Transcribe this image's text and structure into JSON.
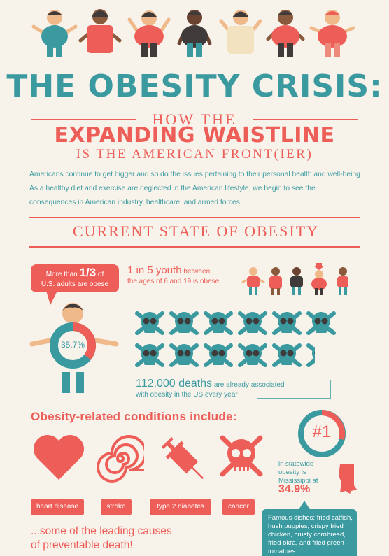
{
  "header": {
    "title": "THE OBESITY CRISIS:",
    "subtitle_line1": "HOW THE",
    "subtitle_line2": "EXPANDING WAISTLINE",
    "subtitle_line3": "IS THE AMERICAN FRONT(IER)"
  },
  "intro": "Americans continue to get bigger and so do the issues pertaining to their personal health and well-being. As a healthy diet and exercise are neglected in the American lifestyle, we begin to see the consequences in American industry, healthcare, and armed forces.",
  "current_state": {
    "heading": "CURRENT STATE OF OBESITY",
    "adults_pre": "More than ",
    "adults_fraction": "1/3",
    "adults_mid": " of",
    "adults_post": "U.S. adults are obese",
    "adults_percent": "35.7%",
    "adults_ring_fraction": 0.357,
    "youth_big": "1 in 5 youth",
    "youth_rest_1": " between",
    "youth_rest_2": "the ages of 6 and 19 is obese",
    "deaths_big": "112,000 deaths",
    "deaths_rest_1": " are already associated",
    "deaths_rest_2": "with obesity in the US every year"
  },
  "conditions": {
    "heading": "Obesity-related conditions include:",
    "items": [
      {
        "label": "heart disease",
        "icon": "heart-icon"
      },
      {
        "label": "stroke",
        "icon": "spiral-icon"
      },
      {
        "label": "type 2 diabetes",
        "icon": "syringe-icon"
      },
      {
        "label": "cancer",
        "icon": "skull-icon"
      }
    ],
    "leading_1": "...some of the leading causes",
    "leading_2": "of preventable death!"
  },
  "mississippi": {
    "rank": "#1",
    "text_1": "in statewide",
    "text_2": "obesity is",
    "text_3": "Mississippi at",
    "percent": "34.9%",
    "dishes": "Famous dishes: fried catfish, hush puppies, crispy fried chicken, crusty cornbread, fried okra, and fried green tomatoes"
  },
  "colors": {
    "teal": "#3a9aa0",
    "coral": "#ee5e58",
    "dark": "#3f3b3a",
    "background": "#f7f2ea"
  }
}
